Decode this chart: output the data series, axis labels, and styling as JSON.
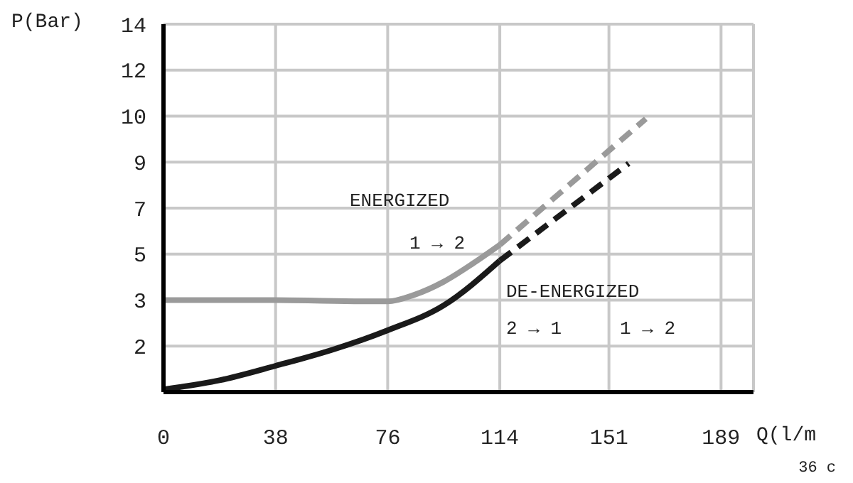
{
  "chart_data": {
    "type": "line",
    "ylabel": "P(Bar)",
    "xlabel": "Q(l/m",
    "xlim": [
      0,
      200
    ],
    "xticks": [
      0,
      38,
      76,
      114,
      151,
      189
    ],
    "ylim": [
      0,
      14
    ],
    "yticks": [
      {
        "value": 1.75,
        "label": "2"
      },
      {
        "value": 3.5,
        "label": "3"
      },
      {
        "value": 5.25,
        "label": "5"
      },
      {
        "value": 7,
        "label": "7"
      },
      {
        "value": 8.75,
        "label": "9"
      },
      {
        "value": 10.5,
        "label": "10"
      },
      {
        "value": 12.25,
        "label": "12"
      },
      14
    ],
    "grid": true,
    "marker": "none",
    "series": [
      {
        "color": "#9a9a9a",
        "line_style": "solid",
        "x": [
          0,
          38,
          70,
          76,
          85,
          95,
          105,
          114
        ],
        "values": [
          3.5,
          3.5,
          3.45,
          3.45,
          3.7,
          4.2,
          4.9,
          5.6
        ]
      },
      {
        "color": "#9a9a9a",
        "line_style": "dashed",
        "x": [
          114,
          163.5
        ],
        "values": [
          5.6,
          10.4
        ]
      },
      {
        "color": "#1a1a1a",
        "line_style": "solid",
        "x": [
          0,
          19,
          38,
          57,
          76,
          95,
          114
        ],
        "values": [
          0.1,
          0.45,
          1.0,
          1.6,
          2.35,
          3.3,
          5.0
        ]
      },
      {
        "color": "#1a1a1a",
        "line_style": "dashed",
        "x": [
          114,
          157.7
        ],
        "values": [
          5.0,
          8.7
        ]
      }
    ],
    "annotations": [
      "ENERGIZED",
      "1 → 2",
      "DE-ENERGIZED",
      "2 → 1",
      "1 → 2",
      "36 c"
    ]
  }
}
